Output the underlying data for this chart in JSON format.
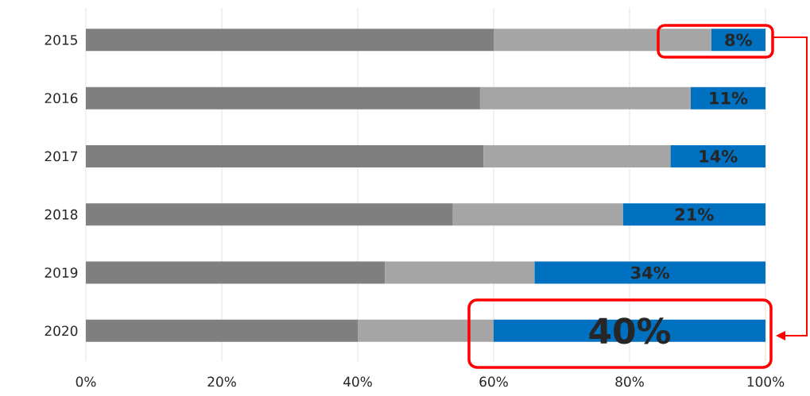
{
  "chart_data": {
    "type": "bar",
    "orientation": "horizontal",
    "stacked": true,
    "categories": [
      "2015",
      "2016",
      "2017",
      "2018",
      "2019",
      "2020"
    ],
    "series": [
      {
        "color": "#7f7f7f",
        "values": [
          60,
          58,
          58.5,
          54,
          44,
          40
        ]
      },
      {
        "color": "#a5a5a5",
        "values": [
          32,
          31,
          27.5,
          25,
          22,
          20
        ]
      },
      {
        "color": "#0070c0",
        "values": [
          8,
          11,
          14,
          21,
          34,
          40
        ],
        "value_labels": [
          "8%",
          "11%",
          "14%",
          "21%",
          "34%",
          "40%"
        ]
      }
    ],
    "xlim": [
      0,
      100
    ],
    "xticks": [
      {
        "value": 0,
        "label": "0%"
      },
      {
        "value": 20,
        "label": "20%"
      },
      {
        "value": 40,
        "label": "40%"
      },
      {
        "value": 60,
        "label": "60%"
      },
      {
        "value": 80,
        "label": "80%"
      },
      {
        "value": 100,
        "label": "100%"
      }
    ],
    "grid": "x"
  }
}
